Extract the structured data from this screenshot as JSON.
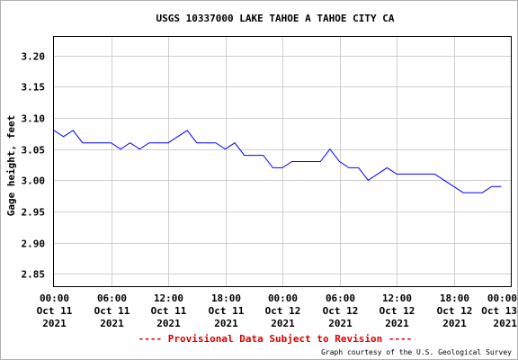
{
  "chart_data": {
    "type": "line",
    "title": "USGS 10337000 LAKE TAHOE A TAHOE CITY CA",
    "ylabel": "Gage height, feet",
    "xlabel": "",
    "ylim": [
      2.83,
      3.23
    ],
    "yticks": [
      2.85,
      2.9,
      2.95,
      3.0,
      3.05,
      3.1,
      3.15,
      3.2
    ],
    "ytick_labels": [
      "2.85",
      "2.90",
      "2.95",
      "3.00",
      "3.05",
      "3.10",
      "3.15",
      "3.20"
    ],
    "xlim": [
      "2021-10-11 00:00",
      "2021-10-13 00:00"
    ],
    "xticks": [
      {
        "time": "2021-10-11 00:00",
        "lines": [
          "00:00",
          "Oct 11",
          "2021"
        ]
      },
      {
        "time": "2021-10-11 06:00",
        "lines": [
          "06:00",
          "Oct 11",
          "2021"
        ]
      },
      {
        "time": "2021-10-11 12:00",
        "lines": [
          "12:00",
          "Oct 11",
          "2021"
        ]
      },
      {
        "time": "2021-10-11 18:00",
        "lines": [
          "18:00",
          "Oct 11",
          "2021"
        ]
      },
      {
        "time": "2021-10-12 00:00",
        "lines": [
          "00:00",
          "Oct 12",
          "2021"
        ]
      },
      {
        "time": "2021-10-12 06:00",
        "lines": [
          "06:00",
          "Oct 12",
          "2021"
        ]
      },
      {
        "time": "2021-10-12 12:00",
        "lines": [
          "12:00",
          "Oct 12",
          "2021"
        ]
      },
      {
        "time": "2021-10-12 18:00",
        "lines": [
          "18:00",
          "Oct 12",
          "2021"
        ]
      },
      {
        "time": "2021-10-13 00:00",
        "lines": [
          "00:00",
          "Oct 13",
          "2021"
        ]
      }
    ],
    "grid": true,
    "series": [
      {
        "color": "#0000ff",
        "x": [
          "2021-10-11 00:00",
          "2021-10-11 01:00",
          "2021-10-11 02:00",
          "2021-10-11 03:00",
          "2021-10-11 04:00",
          "2021-10-11 05:00",
          "2021-10-11 06:00",
          "2021-10-11 07:00",
          "2021-10-11 08:00",
          "2021-10-11 09:00",
          "2021-10-11 10:00",
          "2021-10-11 11:00",
          "2021-10-11 12:00",
          "2021-10-11 13:00",
          "2021-10-11 14:00",
          "2021-10-11 15:00",
          "2021-10-11 16:00",
          "2021-10-11 17:00",
          "2021-10-11 18:00",
          "2021-10-11 19:00",
          "2021-10-11 20:00",
          "2021-10-11 21:00",
          "2021-10-11 22:00",
          "2021-10-11 23:00",
          "2021-10-12 00:00",
          "2021-10-12 01:00",
          "2021-10-12 02:00",
          "2021-10-12 03:00",
          "2021-10-12 04:00",
          "2021-10-12 05:00",
          "2021-10-12 06:00",
          "2021-10-12 07:00",
          "2021-10-12 08:00",
          "2021-10-12 09:00",
          "2021-10-12 10:00",
          "2021-10-12 11:00",
          "2021-10-12 12:00",
          "2021-10-12 13:00",
          "2021-10-12 14:00",
          "2021-10-12 15:00",
          "2021-10-12 16:00",
          "2021-10-12 17:00",
          "2021-10-12 18:00",
          "2021-10-12 19:00",
          "2021-10-12 20:00",
          "2021-10-12 21:00",
          "2021-10-12 22:00",
          "2021-10-12 23:00"
        ],
        "values": [
          3.08,
          3.07,
          3.08,
          3.06,
          3.06,
          3.06,
          3.06,
          3.05,
          3.06,
          3.05,
          3.06,
          3.06,
          3.06,
          3.07,
          3.08,
          3.06,
          3.06,
          3.06,
          3.05,
          3.06,
          3.04,
          3.04,
          3.04,
          3.02,
          3.02,
          3.03,
          3.03,
          3.03,
          3.03,
          3.05,
          3.03,
          3.02,
          3.02,
          3.0,
          3.01,
          3.02,
          3.01,
          3.01,
          3.01,
          3.01,
          3.01,
          3.0,
          2.99,
          2.98,
          2.98,
          2.98,
          2.99,
          2.99
        ]
      }
    ]
  },
  "footer": {
    "provisional": "---- Provisional Data Subject to Revision ----",
    "credit": "Graph courtesy of the U.S. Geological Survey"
  }
}
